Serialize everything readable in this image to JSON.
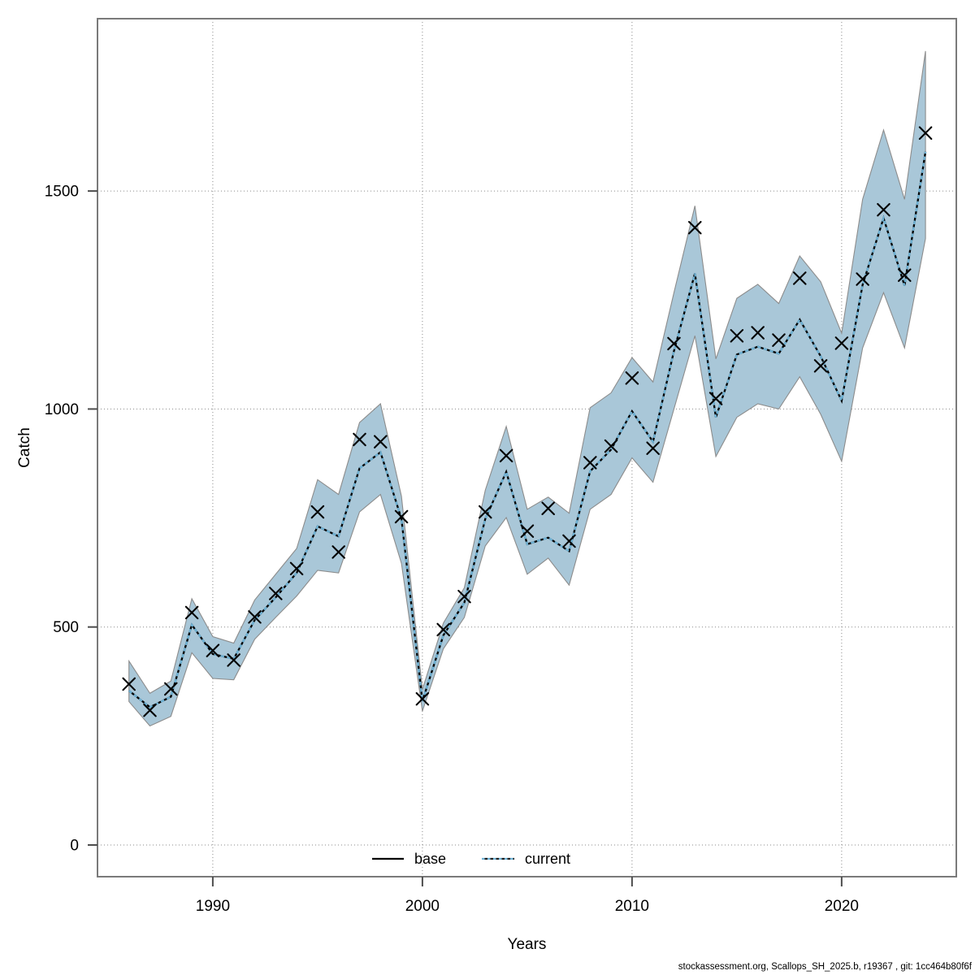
{
  "footer": {
    "text": "stockassessment.org, Scallops_SH_2025.b, r19367 , git: 1cc464b80f6f"
  },
  "chart_data": {
    "type": "line",
    "title": "",
    "xlabel": "Years",
    "ylabel": "Catch",
    "grid": "dotted",
    "legend_position": "bottom-center-inside",
    "x_ticks": [
      1990,
      2000,
      2010,
      2020
    ],
    "x_tick_labels": [
      "1990",
      "2000",
      "2010",
      "2020"
    ],
    "y_ticks": [
      0,
      500,
      1000,
      1500
    ],
    "y_tick_labels": [
      "0",
      "500",
      "1000",
      "1500"
    ],
    "xlim": [
      1984.5,
      2025.47
    ],
    "ylim": [
      -72.7,
      1895.3
    ],
    "colors": {
      "band_fill": "#a9c7d8",
      "band_edge": "#8c8c8c",
      "base_line": "#000000",
      "current_line": "#6fb3d6",
      "marker": "#000000",
      "grid": "#8a8a8a",
      "frame": "#7a7a7a",
      "tick": "#4d4d4d"
    },
    "legend": [
      {
        "label": "base",
        "style": "solid",
        "color": "#000000"
      },
      {
        "label": "current",
        "style": "dashed",
        "color": "#6fb3d6"
      }
    ],
    "years": [
      1986,
      1987,
      1988,
      1989,
      1990,
      1991,
      1992,
      1993,
      1994,
      1995,
      1996,
      1997,
      1998,
      1999,
      2000,
      2001,
      2002,
      2003,
      2004,
      2005,
      2006,
      2007,
      2008,
      2009,
      2010,
      2011,
      2012,
      2013,
      2014,
      2015,
      2016,
      2017,
      2018,
      2019,
      2020,
      2021,
      2022,
      2023,
      2024
    ],
    "series": [
      {
        "name": "observed_catch_markers",
        "marker": "x",
        "values": [
          369,
          309,
          358,
          533,
          446,
          424,
          523,
          577,
          634,
          764,
          672,
          930,
          925,
          753,
          335,
          494,
          570,
          764,
          893,
          720,
          772,
          697,
          877,
          915,
          1071,
          910,
          1150,
          1416,
          1024,
          1168,
          1175,
          1158,
          1300,
          1099,
          1151,
          1298,
          1457,
          1307,
          1633
        ]
      },
      {
        "name": "base",
        "line": "solid",
        "values": [
          354,
          316,
          340,
          505,
          438,
          427,
          516,
          568,
          624,
          731,
          708,
          864,
          901,
          748,
          330,
          481,
          556,
          748,
          856,
          690,
          705,
          674,
          857,
          907,
          995,
          925,
          1133,
          1311,
          981,
          1125,
          1143,
          1127,
          1205,
          1121,
          1019,
          1285,
          1438,
          1283,
          1590
        ]
      },
      {
        "name": "current",
        "line": "dashed",
        "values": [
          354,
          316,
          340,
          505,
          438,
          427,
          516,
          568,
          624,
          731,
          708,
          864,
          901,
          748,
          330,
          481,
          556,
          748,
          856,
          690,
          705,
          674,
          857,
          907,
          995,
          925,
          1133,
          1311,
          981,
          1125,
          1143,
          1127,
          1205,
          1121,
          1019,
          1285,
          1438,
          1283,
          1590
        ]
      }
    ],
    "band": {
      "name": "current_confidence_band",
      "upper": [
        422,
        348,
        376,
        565,
        478,
        463,
        562,
        621,
        680,
        838,
        804,
        969,
        1012,
        800,
        357,
        509,
        590,
        814,
        960,
        770,
        798,
        761,
        1003,
        1037,
        1118,
        1062,
        1267,
        1466,
        1115,
        1254,
        1286,
        1242,
        1351,
        1292,
        1174,
        1481,
        1640,
        1481,
        1821
      ],
      "lower": [
        329,
        273,
        295,
        441,
        382,
        379,
        472,
        522,
        571,
        630,
        624,
        764,
        804,
        646,
        307,
        450,
        522,
        686,
        751,
        621,
        658,
        596,
        770,
        804,
        888,
        832,
        1000,
        1168,
        891,
        981,
        1012,
        1000,
        1074,
        988,
        880,
        1140,
        1267,
        1140,
        1391
      ]
    }
  }
}
